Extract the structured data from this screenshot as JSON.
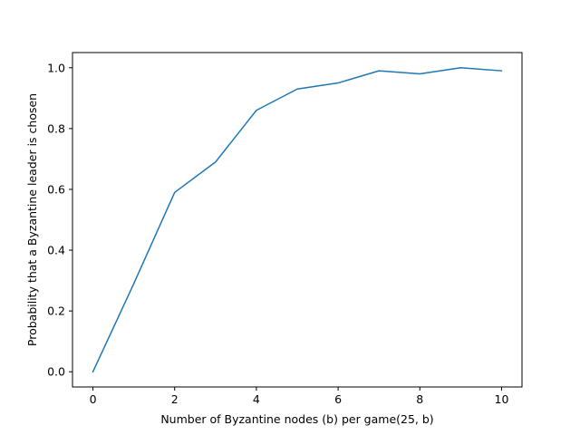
{
  "chart_data": {
    "type": "line",
    "title": "",
    "xlabel": "Number of Byzantine nodes (b) per game(25, b)",
    "ylabel": "Probability that a Byzantine leader is chosen",
    "xlim": [
      -0.5,
      10.5
    ],
    "ylim": [
      -0.05,
      1.05
    ],
    "xticks": [
      0,
      2,
      4,
      6,
      8,
      10
    ],
    "xtick_labels": [
      "0",
      "2",
      "4",
      "6",
      "8",
      "10"
    ],
    "yticks": [
      0.0,
      0.2,
      0.4,
      0.6,
      0.8,
      1.0
    ],
    "ytick_labels": [
      "0.0",
      "0.2",
      "0.4",
      "0.6",
      "0.8",
      "1.0"
    ],
    "grid": false,
    "series": [
      {
        "color": "#1f77b4",
        "x": [
          0,
          1,
          2,
          3,
          4,
          5,
          6,
          7,
          8,
          9,
          10
        ],
        "y": [
          0.0,
          0.29,
          0.59,
          0.69,
          0.86,
          0.93,
          0.95,
          0.99,
          0.98,
          1.0,
          0.99
        ]
      }
    ]
  }
}
